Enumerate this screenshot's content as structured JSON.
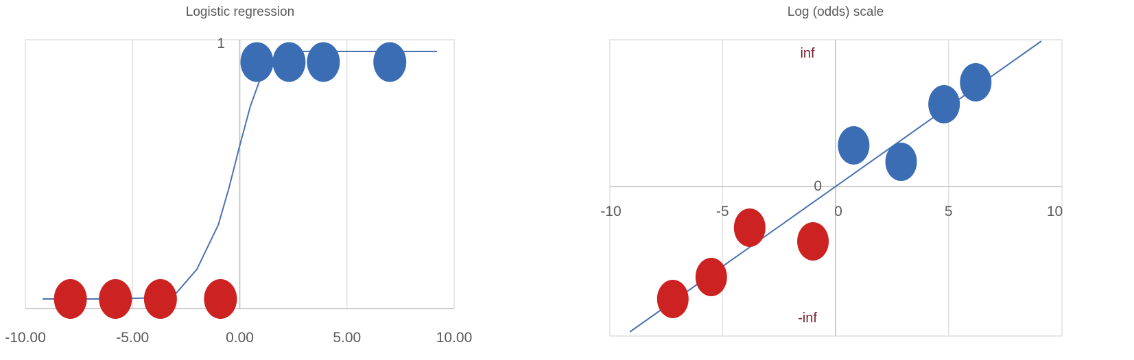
{
  "colors": {
    "class_one": "#3a6db4",
    "class_zero": "#cc2222",
    "curve": "#4a72b0",
    "text": "#595959",
    "annotation": "#7a1c2e"
  },
  "chart_data": [
    {
      "type": "scatter",
      "title": "Logistic regression",
      "xlabel": "",
      "ylabel": "",
      "xlim": [
        -10,
        10
      ],
      "ylim": [
        0,
        1
      ],
      "x_ticks": [
        -10,
        -5,
        0,
        5,
        10
      ],
      "x_tick_labels": [
        "-10.00",
        "-5.00",
        "0.00",
        "5.00",
        "10.00"
      ],
      "y_tick_labels": [
        "1"
      ],
      "grid": true,
      "curve": {
        "x": [
          -9.2,
          -8,
          -6,
          -4,
          -3,
          -2,
          -1,
          -0.5,
          0,
          0.5,
          1,
          1.5,
          2,
          3,
          4,
          6,
          9.2
        ],
        "y": [
          0,
          0,
          0,
          0.005,
          0.02,
          0.12,
          0.3,
          0.45,
          0.62,
          0.78,
          0.9,
          0.96,
          0.99,
          1,
          1,
          1,
          1
        ]
      },
      "series": [
        {
          "values": [
            {
              "x": -7.9,
              "y": 0
            },
            {
              "x": -5.8,
              "y": 0
            },
            {
              "x": -3.7,
              "y": 0
            },
            {
              "x": -0.9,
              "y": 0
            }
          ]
        },
        {
          "values": [
            {
              "x": 0.8,
              "y": 0.96
            },
            {
              "x": 2.3,
              "y": 0.96
            },
            {
              "x": 3.9,
              "y": 0.96
            },
            {
              "x": 7.0,
              "y": 0.96
            }
          ]
        }
      ]
    },
    {
      "type": "scatter",
      "title": "Log (odds) scale",
      "xlabel": "",
      "ylabel": "",
      "xlim": [
        -10,
        10
      ],
      "x_ticks": [
        -10,
        -5,
        0,
        5,
        10
      ],
      "x_tick_labels": [
        "-10",
        "-5",
        "0",
        "5",
        "10"
      ],
      "y_tick_labels": [
        "0"
      ],
      "grid": true,
      "annotations": {
        "top": "inf",
        "bottom": "-inf"
      },
      "line": {
        "x": [
          -9.1,
          9.1
        ],
        "y": [
          -5.3,
          5.3
        ]
      },
      "series": [
        {
          "values": [
            {
              "x": -7.2,
              "y": -4.1
            },
            {
              "x": -5.5,
              "y": -3.3
            },
            {
              "x": -3.8,
              "y": -1.5
            },
            {
              "x": -1.0,
              "y": -2.0
            }
          ]
        },
        {
          "values": [
            {
              "x": 0.8,
              "y": 1.5
            },
            {
              "x": 2.9,
              "y": 0.9
            },
            {
              "x": 4.8,
              "y": 3.0
            },
            {
              "x": 6.2,
              "y": 3.8
            }
          ]
        }
      ]
    }
  ]
}
